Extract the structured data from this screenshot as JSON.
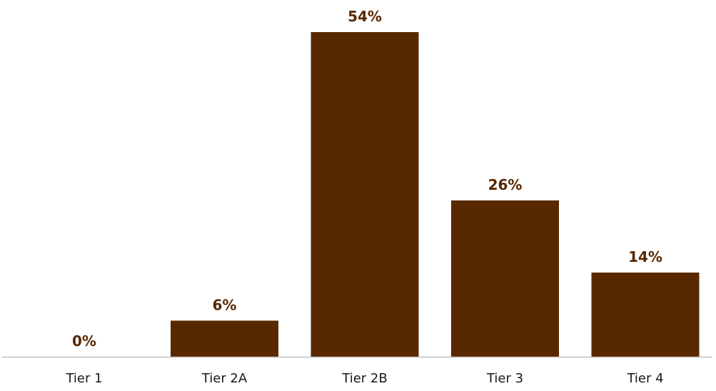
{
  "chart_data": {
    "type": "bar",
    "title": "",
    "xlabel": "",
    "ylabel": "",
    "categories": [
      "Tier 1",
      "Tier 2A",
      "Tier 2B",
      "Tier 3",
      "Tier 4"
    ],
    "values": [
      0,
      6,
      54,
      26,
      14
    ],
    "data_labels": [
      "0%",
      "6%",
      "54%",
      "26%",
      "14%"
    ],
    "ylim": [
      0,
      54
    ],
    "grid": false,
    "legend": "none",
    "colors": {
      "bar": "#582800",
      "value_label": "#582800",
      "tick_label": "#1a1a1a",
      "axis": "#bfbfbf"
    }
  }
}
